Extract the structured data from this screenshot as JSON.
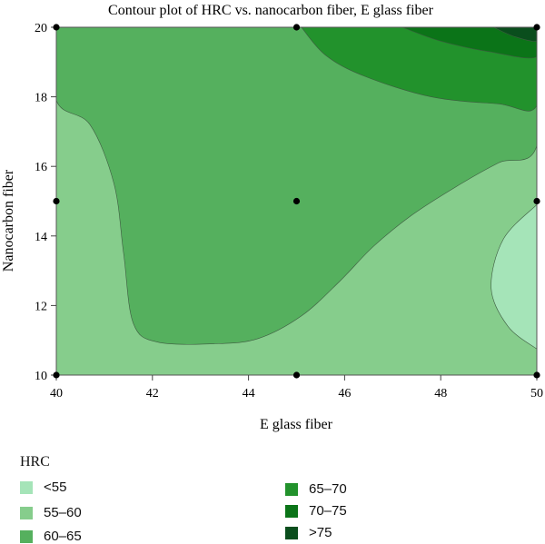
{
  "chart_data": {
    "type": "contour",
    "title": "Contour plot of HRC vs. nanocarbon fiber, E glass fiber",
    "xlabel": "E glass fiber",
    "ylabel": "Nanocarbon fiber",
    "xlim": [
      40,
      50
    ],
    "ylim": [
      10,
      20
    ],
    "x_ticks": [
      40,
      42,
      44,
      46,
      48,
      50
    ],
    "y_ticks": [
      10,
      12,
      14,
      16,
      18,
      20
    ],
    "x_tick_labels": [
      "40",
      "42",
      "44",
      "46",
      "48",
      "50"
    ],
    "y_tick_labels": [
      "10",
      "12",
      "14",
      "16",
      "18",
      "20"
    ],
    "design_points": [
      {
        "x": 40,
        "y": 10
      },
      {
        "x": 40,
        "y": 15
      },
      {
        "x": 40,
        "y": 20
      },
      {
        "x": 45,
        "y": 10
      },
      {
        "x": 45,
        "y": 15
      },
      {
        "x": 45,
        "y": 20
      },
      {
        "x": 50,
        "y": 10
      },
      {
        "x": 50,
        "y": 15
      },
      {
        "x": 50,
        "y": 20
      }
    ],
    "legend": {
      "title": "HRC",
      "placement": "bottom",
      "levels": [
        {
          "label": "<55",
          "color": "#a5e4b8"
        },
        {
          "label": "55–60",
          "color": "#86cd8c"
        },
        {
          "label": "60–65",
          "color": "#55b05e"
        },
        {
          "label": "65–70",
          "color": "#22922c"
        },
        {
          "label": "70–75",
          "color": "#0b7418"
        },
        {
          "label": ">75",
          "color": "#0a4e1d"
        }
      ]
    },
    "regions": [
      {
        "level": "55–60",
        "boundary": [
          [
            40,
            10
          ],
          [
            50,
            10
          ],
          [
            50,
            20
          ],
          [
            40,
            20
          ]
        ]
      },
      {
        "level": "60–65",
        "boundary": [
          [
            40,
            20
          ],
          [
            40,
            17.9
          ],
          [
            40.7,
            17.2
          ],
          [
            41.2,
            15.5
          ],
          [
            41.4,
            13.5
          ],
          [
            41.6,
            11.5
          ],
          [
            42.1,
            10.95
          ],
          [
            43.3,
            10.9
          ],
          [
            44.2,
            11.05
          ],
          [
            45.1,
            11.7
          ],
          [
            45.9,
            12.7
          ],
          [
            46.6,
            13.7
          ],
          [
            47.4,
            14.6
          ],
          [
            48.3,
            15.4
          ],
          [
            49.2,
            16.1
          ],
          [
            50,
            16.6
          ],
          [
            50,
            20
          ]
        ]
      },
      {
        "level": "65–70",
        "boundary": [
          [
            45.1,
            20
          ],
          [
            45.6,
            19.2
          ],
          [
            46.4,
            18.6
          ],
          [
            47.8,
            18.0
          ],
          [
            49.2,
            17.8
          ],
          [
            50,
            17.75
          ],
          [
            50,
            20
          ]
        ]
      },
      {
        "level": "70–75",
        "boundary": [
          [
            47.2,
            20
          ],
          [
            48.0,
            19.6
          ],
          [
            49.0,
            19.3
          ],
          [
            50,
            19.15
          ],
          [
            50,
            20
          ]
        ]
      },
      {
        "level": ">75",
        "boundary": [
          [
            49.1,
            20
          ],
          [
            49.5,
            19.75
          ],
          [
            50,
            19.6
          ],
          [
            50,
            20
          ]
        ]
      },
      {
        "level": "<55",
        "boundary": [
          [
            50,
            14.9
          ],
          [
            49.3,
            13.9
          ],
          [
            49.05,
            12.5
          ],
          [
            49.4,
            11.4
          ],
          [
            50,
            10.75
          ]
        ]
      }
    ]
  }
}
